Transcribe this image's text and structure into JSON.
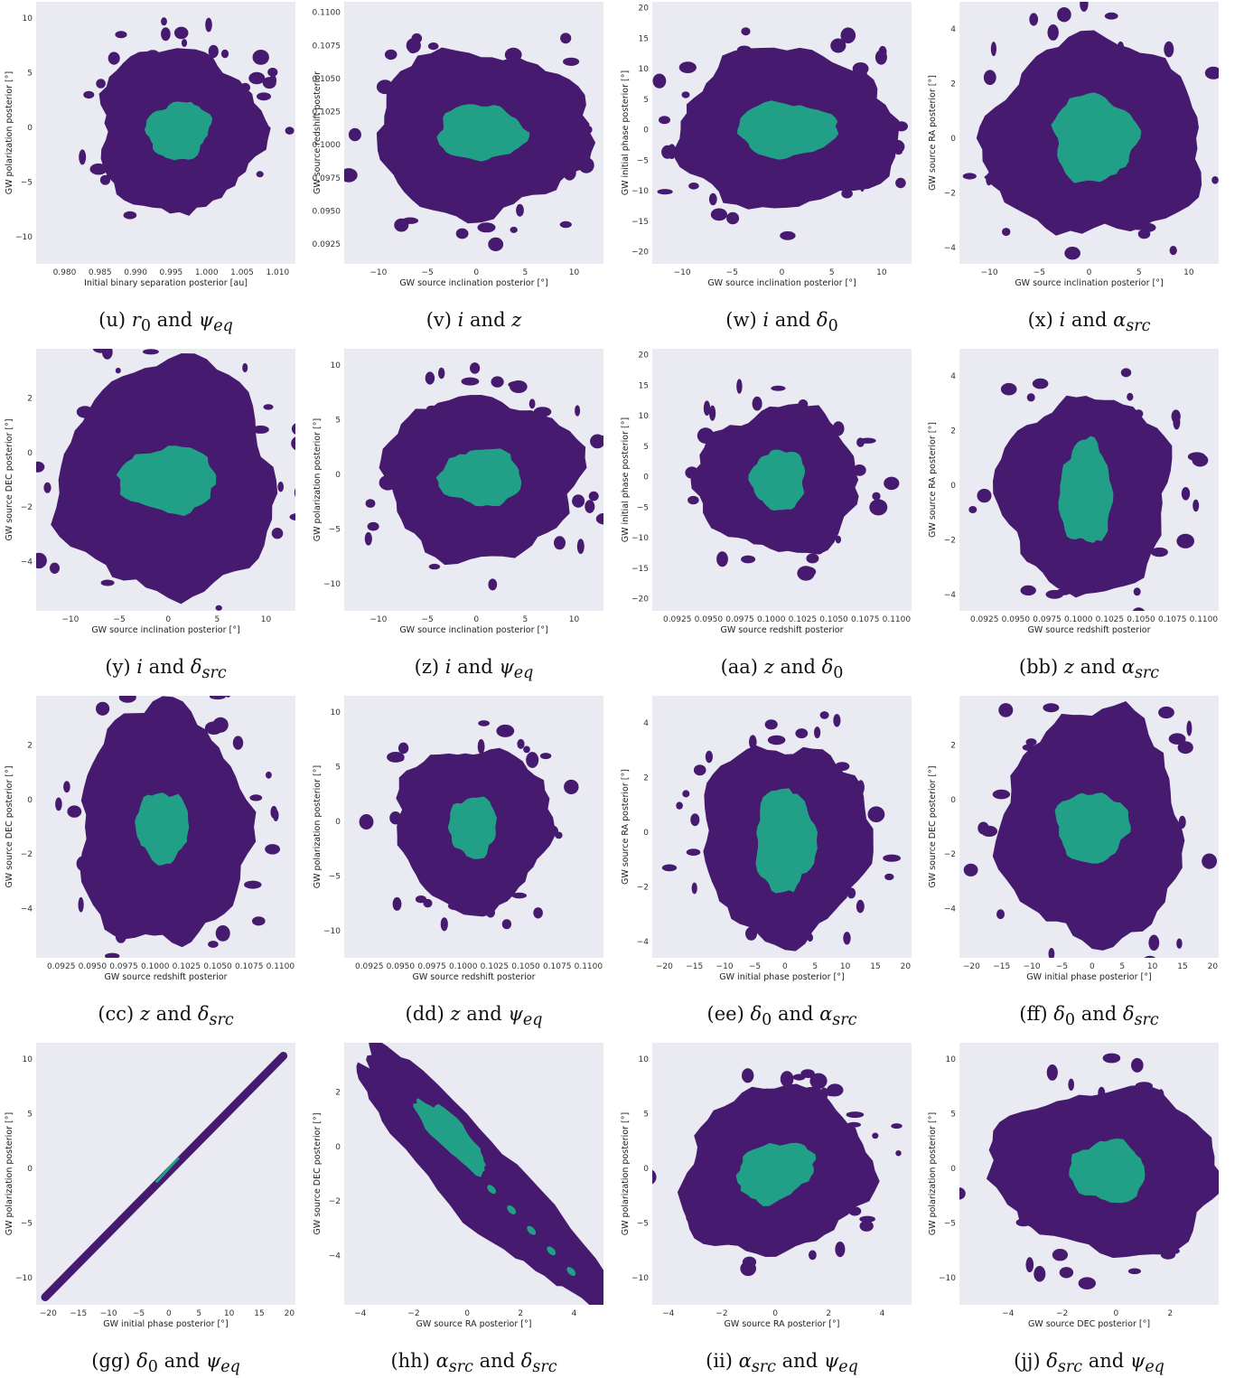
{
  "colors": {
    "background": "#eaeaf2",
    "outer": "#461a6e",
    "inner": "#21a087"
  },
  "chart_data": [
    {
      "id": "u",
      "type": "contour",
      "caption": "(u) r₀ and ψₑq",
      "caption_html": "(u) <i>r</i><sub>0</sub> and <i>ψ</i><sub><i>eq</i></sub>",
      "xlabel": "Initial binary separation posterior [au]",
      "ylabel": "GW polarization posterior [°]",
      "xlim": [
        0.976,
        1.0125
      ],
      "ylim": [
        -12.5,
        11.5
      ],
      "xticks": [
        0.98,
        0.985,
        0.99,
        0.995,
        1.0,
        1.005,
        1.01
      ],
      "xtick_labels": [
        "0.980",
        "0.985",
        "0.990",
        "0.995",
        "1.000",
        "1.005",
        "1.010"
      ],
      "yticks": [
        -10,
        -5,
        0,
        5,
        10
      ],
      "ytick_labels": [
        "−10",
        "−5",
        "0",
        "5",
        "10"
      ],
      "center": [
        0.996,
        -0.3
      ],
      "outer_radius": [
        0.0115,
        7.5
      ],
      "inner_radius": [
        0.0045,
        2.6
      ],
      "tilt": -0.35
    },
    {
      "id": "v",
      "type": "contour",
      "caption": "(v) i and z",
      "caption_html": "(v) <i>i</i> and <i>z</i>",
      "xlabel": "GW source inclination posterior [°]",
      "ylabel": "GW source redshift posterior",
      "xlim": [
        -13.5,
        13
      ],
      "ylim": [
        0.091,
        0.1108
      ],
      "xticks": [
        -10,
        -5,
        0,
        5,
        10
      ],
      "xtick_labels": [
        "−10",
        "−5",
        "0",
        "5",
        "10"
      ],
      "yticks": [
        0.0925,
        0.095,
        0.0975,
        0.1,
        0.1025,
        0.105,
        0.1075,
        0.11
      ],
      "ytick_labels": [
        "0.0925",
        "0.0950",
        "0.0975",
        "0.1000",
        "0.1025",
        "0.1050",
        "0.1075",
        "0.1100"
      ],
      "center": [
        0.5,
        0.1009
      ],
      "outer_radius": [
        11,
        0.0062
      ],
      "inner_radius": [
        4.5,
        0.0021
      ],
      "tilt": 0
    },
    {
      "id": "w",
      "type": "contour",
      "caption": "(w) i and δ₀",
      "caption_html": "(w) <i>i</i> and <i>δ</i><sub>0</sub>",
      "xlabel": "GW source inclination posterior [°]",
      "ylabel": "GW initial phase posterior [°]",
      "xlim": [
        -13,
        13
      ],
      "ylim": [
        -22,
        21
      ],
      "xticks": [
        -10,
        -5,
        0,
        5,
        10
      ],
      "xtick_labels": [
        "−10",
        "−5",
        "0",
        "5",
        "10"
      ],
      "yticks": [
        -20,
        -15,
        -10,
        -5,
        0,
        5,
        10,
        15,
        20
      ],
      "ytick_labels": [
        "−20",
        "−15",
        "−10",
        "−5",
        "0",
        "5",
        "10",
        "15",
        "20"
      ],
      "center": [
        0.5,
        0
      ],
      "outer_radius": [
        11,
        13
      ],
      "inner_radius": [
        5,
        4.5
      ],
      "tilt": 0
    },
    {
      "id": "x",
      "type": "contour",
      "caption": "(x) i and αsrc",
      "caption_html": "(x) <i>i</i> and <i>α</i><sub><i>src</i></sub>",
      "xlabel": "GW source inclination posterior [°]",
      "ylabel": "GW source RA posterior [°]",
      "xlim": [
        -13,
        13
      ],
      "ylim": [
        -4.6,
        5
      ],
      "xticks": [
        -10,
        -5,
        0,
        5,
        10
      ],
      "xtick_labels": [
        "−10",
        "−5",
        "0",
        "5",
        "10"
      ],
      "yticks": [
        -4,
        -2,
        0,
        2,
        4
      ],
      "ytick_labels": [
        "−4",
        "−2",
        "0",
        "2",
        "4"
      ],
      "center": [
        0.5,
        0
      ],
      "outer_radius": [
        11,
        3.6
      ],
      "inner_radius": [
        4.2,
        1.6
      ],
      "tilt": 0
    },
    {
      "id": "y",
      "type": "contour",
      "caption": "(y) i and δsrc",
      "caption_html": "(y) <i>i</i> and <i>δ</i><sub><i>src</i></sub>",
      "xlabel": "GW source inclination posterior [°]",
      "ylabel": "GW source DEC posterior [°]",
      "xlim": [
        -13.5,
        13
      ],
      "ylim": [
        -5.8,
        3.8
      ],
      "xticks": [
        -10,
        -5,
        0,
        5,
        10
      ],
      "xtick_labels": [
        "−10",
        "−5",
        "0",
        "5",
        "10"
      ],
      "yticks": [
        -4,
        -2,
        0,
        2
      ],
      "ytick_labels": [
        "−4",
        "−2",
        "0",
        "2"
      ],
      "center": [
        0,
        -1
      ],
      "outer_radius": [
        11,
        4.3
      ],
      "inner_radius": [
        5,
        1.2
      ],
      "tilt": 0
    },
    {
      "id": "z",
      "type": "contour",
      "caption": "(z) i and ψₑq",
      "caption_html": "(z) <i>i</i> and <i>ψ</i><sub><i>eq</i></sub>",
      "xlabel": "GW source inclination posterior [°]",
      "ylabel": "GW polarization posterior [°]",
      "xlim": [
        -13.5,
        13
      ],
      "ylim": [
        -12.5,
        11.5
      ],
      "xticks": [
        -10,
        -5,
        0,
        5,
        10
      ],
      "xtick_labels": [
        "−10",
        "−5",
        "0",
        "5",
        "10"
      ],
      "yticks": [
        -10,
        -5,
        0,
        5,
        10
      ],
      "ytick_labels": [
        "−10",
        "−5",
        "0",
        "5",
        "10"
      ],
      "center": [
        0.5,
        -0.3
      ],
      "outer_radius": [
        10,
        7.5
      ],
      "inner_radius": [
        4.2,
        2.6
      ],
      "tilt": 0
    },
    {
      "id": "aa",
      "type": "contour",
      "caption": "(aa) z and δ₀",
      "caption_html": "(aa) <i>z</i> and <i>δ</i><sub>0</sub>",
      "xlabel": "GW source redshift posterior",
      "ylabel": "GW initial phase posterior [°]",
      "xlim": [
        0.0905,
        0.1112
      ],
      "ylim": [
        -22,
        21
      ],
      "xticks": [
        0.0925,
        0.095,
        0.0975,
        0.1,
        0.1025,
        0.105,
        0.1075,
        0.11
      ],
      "xtick_labels": [
        "0.0925",
        "0.0950",
        "0.0975",
        "0.1000",
        "0.1025",
        "0.1050",
        "0.1075",
        "0.1100"
      ],
      "yticks": [
        -20,
        -15,
        -10,
        -5,
        0,
        5,
        10,
        15,
        20
      ],
      "ytick_labels": [
        "−20",
        "−15",
        "−10",
        "−5",
        "0",
        "5",
        "10",
        "15",
        "20"
      ],
      "center": [
        0.1006,
        -0.5
      ],
      "outer_radius": [
        0.0065,
        12
      ],
      "inner_radius": [
        0.0022,
        5
      ],
      "tilt": 0
    },
    {
      "id": "bb",
      "type": "contour",
      "caption": "(bb) z and αsrc",
      "caption_html": "(bb) <i>z</i> and <i>α</i><sub><i>src</i></sub>",
      "xlabel": "GW source redshift posterior",
      "ylabel": "GW source RA posterior [°]",
      "xlim": [
        0.0905,
        0.1112
      ],
      "ylim": [
        -4.6,
        5
      ],
      "xticks": [
        0.0925,
        0.095,
        0.0975,
        0.1,
        0.1025,
        0.105,
        0.1075,
        0.11
      ],
      "xtick_labels": [
        "0.0925",
        "0.0950",
        "0.0975",
        "0.1000",
        "0.1025",
        "0.1050",
        "0.1075",
        "0.1100"
      ],
      "yticks": [
        -4,
        -2,
        0,
        2,
        4
      ],
      "ytick_labels": [
        "−4",
        "−2",
        "0",
        "2",
        "4"
      ],
      "center": [
        0.1006,
        -0.3
      ],
      "outer_radius": [
        0.0068,
        3.6
      ],
      "inner_radius": [
        0.0021,
        1.9
      ],
      "tilt": 0
    },
    {
      "id": "cc",
      "type": "contour",
      "caption": "(cc) z and δsrc",
      "caption_html": "(cc) <i>z</i> and <i>δ</i><sub><i>src</i></sub>",
      "xlabel": "GW source redshift posterior",
      "ylabel": "GW source DEC posterior [°]",
      "xlim": [
        0.0905,
        0.1112
      ],
      "ylim": [
        -5.8,
        3.8
      ],
      "xticks": [
        0.0925,
        0.095,
        0.0975,
        0.1,
        0.1025,
        0.105,
        0.1075,
        0.11
      ],
      "xtick_labels": [
        "0.0925",
        "0.0950",
        "0.0975",
        "0.1000",
        "0.1025",
        "0.1050",
        "0.1075",
        "0.1100"
      ],
      "yticks": [
        -4,
        -2,
        0,
        2
      ],
      "ytick_labels": [
        "−4",
        "−2",
        "0",
        "2"
      ],
      "center": [
        0.1006,
        -1
      ],
      "outer_radius": [
        0.0068,
        4.4
      ],
      "inner_radius": [
        0.0021,
        1.3
      ],
      "tilt": 0
    },
    {
      "id": "dd",
      "type": "contour",
      "caption": "(dd) z and ψₑq",
      "caption_html": "(dd) <i>z</i> and <i>ψ</i><sub><i>eq</i></sub>",
      "xlabel": "GW source redshift posterior",
      "ylabel": "GW polarization posterior [°]",
      "xlim": [
        0.0905,
        0.1112
      ],
      "ylim": [
        -12.5,
        11.5
      ],
      "xticks": [
        0.0925,
        0.095,
        0.0975,
        0.1,
        0.1025,
        0.105,
        0.1075,
        0.11
      ],
      "xtick_labels": [
        "0.0925",
        "0.0950",
        "0.0975",
        "0.1000",
        "0.1025",
        "0.1050",
        "0.1075",
        "0.1100"
      ],
      "yticks": [
        -10,
        -5,
        0,
        5,
        10
      ],
      "ytick_labels": [
        "−10",
        "−5",
        "0",
        "5",
        "10"
      ],
      "center": [
        0.1008,
        -0.5
      ],
      "outer_radius": [
        0.0062,
        7.5
      ],
      "inner_radius": [
        0.0019,
        2.8
      ],
      "tilt": 0
    },
    {
      "id": "ee",
      "type": "contour",
      "caption": "(ee) δ₀ and αsrc",
      "caption_html": "(ee) <i>δ</i><sub>0</sub> and <i>α</i><sub><i>src</i></sub>",
      "xlabel": "GW initial phase posterior [°]",
      "ylabel": "GW source RA posterior [°]",
      "xlim": [
        -22,
        21
      ],
      "ylim": [
        -4.6,
        5
      ],
      "xticks": [
        -20,
        -15,
        -10,
        -5,
        0,
        5,
        10,
        15,
        20
      ],
      "xtick_labels": [
        "−20",
        "−15",
        "−10",
        "−5",
        "0",
        "5",
        "10",
        "15",
        "20"
      ],
      "yticks": [
        -4,
        -2,
        0,
        2,
        4
      ],
      "ytick_labels": [
        "−4",
        "−2",
        "0",
        "2",
        "4"
      ],
      "center": [
        0,
        -0.3
      ],
      "outer_radius": [
        14,
        3.6
      ],
      "inner_radius": [
        5,
        1.9
      ],
      "tilt": 0
    },
    {
      "id": "ff",
      "type": "contour",
      "caption": "(ff) δ₀ and δsrc",
      "caption_html": "(ff) <i>δ</i><sub>0</sub> and <i>δ</i><sub><i>src</i></sub>",
      "xlabel": "GW initial phase posterior [°]",
      "ylabel": "GW source DEC posterior [°]",
      "xlim": [
        -22,
        21
      ],
      "ylim": [
        -5.8,
        3.8
      ],
      "xticks": [
        -20,
        -15,
        -10,
        -5,
        0,
        5,
        10,
        15,
        20
      ],
      "xtick_labels": [
        "−20",
        "−15",
        "−10",
        "−5",
        "0",
        "5",
        "10",
        "15",
        "20"
      ],
      "yticks": [
        -4,
        -2,
        0,
        2
      ],
      "ytick_labels": [
        "−4",
        "−2",
        "0",
        "2"
      ],
      "center": [
        0,
        -1
      ],
      "outer_radius": [
        15,
        4.3
      ],
      "inner_radius": [
        6,
        1.3
      ],
      "tilt": 0
    },
    {
      "id": "gg",
      "type": "contour",
      "caption": "(gg) δ₀ and ψₑq",
      "caption_html": "(gg) <i>δ</i><sub>0</sub> and <i>ψ</i><sub><i>eq</i></sub>",
      "xlabel": "GW initial phase posterior [°]",
      "ylabel": "GW polarization posterior [°]",
      "xlim": [
        -22,
        21
      ],
      "ylim": [
        -12.5,
        11.5
      ],
      "xticks": [
        -20,
        -15,
        -10,
        -5,
        0,
        5,
        10,
        15,
        20
      ],
      "xtick_labels": [
        "−20",
        "−15",
        "−10",
        "−5",
        "0",
        "5",
        "10",
        "15",
        "20"
      ],
      "yticks": [
        -10,
        -5,
        0,
        5,
        10
      ],
      "ytick_labels": [
        "−10",
        "−5",
        "0",
        "5",
        "10"
      ],
      "line": {
        "from": [
          -20.5,
          -11.8
        ],
        "to": [
          19,
          10.3
        ]
      },
      "inner_line": {
        "from": [
          -2,
          -1.2
        ],
        "to": [
          1.5,
          0.9
        ]
      }
    },
    {
      "id": "hh",
      "type": "contour",
      "caption": "(hh) αsrc and δsrc",
      "caption_html": "(hh) <i>α</i><sub><i>src</i></sub> and <i>δ</i><sub><i>src</i></sub>",
      "xlabel": "GW source RA posterior [°]",
      "ylabel": "GW source DEC posterior [°]",
      "xlim": [
        -4.6,
        5.1
      ],
      "ylim": [
        -5.8,
        3.8
      ],
      "xticks": [
        -4,
        -2,
        0,
        2,
        4
      ],
      "xtick_labels": [
        "−4",
        "−2",
        "0",
        "2",
        "4"
      ],
      "yticks": [
        -4,
        -2,
        0,
        2
      ],
      "ytick_labels": [
        "−4",
        "−2",
        "0",
        "2"
      ],
      "band": {
        "from": [
          -4.2,
          3.6
        ],
        "to": [
          5.1,
          -5.8
        ]
      },
      "inner_blob": {
        "center": [
          -0.6,
          0.4
        ],
        "length": 3.6
      }
    },
    {
      "id": "ii",
      "type": "contour",
      "caption": "(ii) αsrc and ψₑq",
      "caption_html": "(ii) <i>α</i><sub><i>src</i></sub> and <i>ψ</i><sub><i>eq</i></sub>",
      "xlabel": "GW source RA posterior [°]",
      "ylabel": "GW polarization posterior [°]",
      "xlim": [
        -4.6,
        5.1
      ],
      "ylim": [
        -12.5,
        11.5
      ],
      "xticks": [
        -4,
        -2,
        0,
        2,
        4
      ],
      "xtick_labels": [
        "−4",
        "−2",
        "0",
        "2",
        "4"
      ],
      "yticks": [
        -10,
        -5,
        0,
        5,
        10
      ],
      "ytick_labels": [
        "−10",
        "−5",
        "0",
        "5",
        "10"
      ],
      "center": [
        0,
        -0.3
      ],
      "outer_radius": [
        3.6,
        7.5
      ],
      "inner_radius": [
        1.5,
        2.6
      ],
      "tilt": -0.4
    },
    {
      "id": "jj",
      "type": "contour",
      "caption": "(jj) δsrc and ψₑq",
      "caption_html": "(jj) <i>δ</i><sub><i>src</i></sub> and <i>ψ</i><sub><i>eq</i></sub>",
      "xlabel": "GW source DEC posterior [°]",
      "ylabel": "GW polarization posterior [°]",
      "xlim": [
        -5.8,
        3.8
      ],
      "ylim": [
        -12.5,
        11.5
      ],
      "xticks": [
        -4,
        -2,
        0,
        2
      ],
      "xtick_labels": [
        "−4",
        "−2",
        "0",
        "2"
      ],
      "yticks": [
        -10,
        -5,
        0,
        5,
        10
      ],
      "ytick_labels": [
        "−10",
        "−5",
        "0",
        "5",
        "10"
      ],
      "center": [
        -0.3,
        -0.3
      ],
      "outer_radius": [
        4.3,
        7.5
      ],
      "inner_radius": [
        1.4,
        2.8
      ],
      "tilt": 0.1
    }
  ]
}
